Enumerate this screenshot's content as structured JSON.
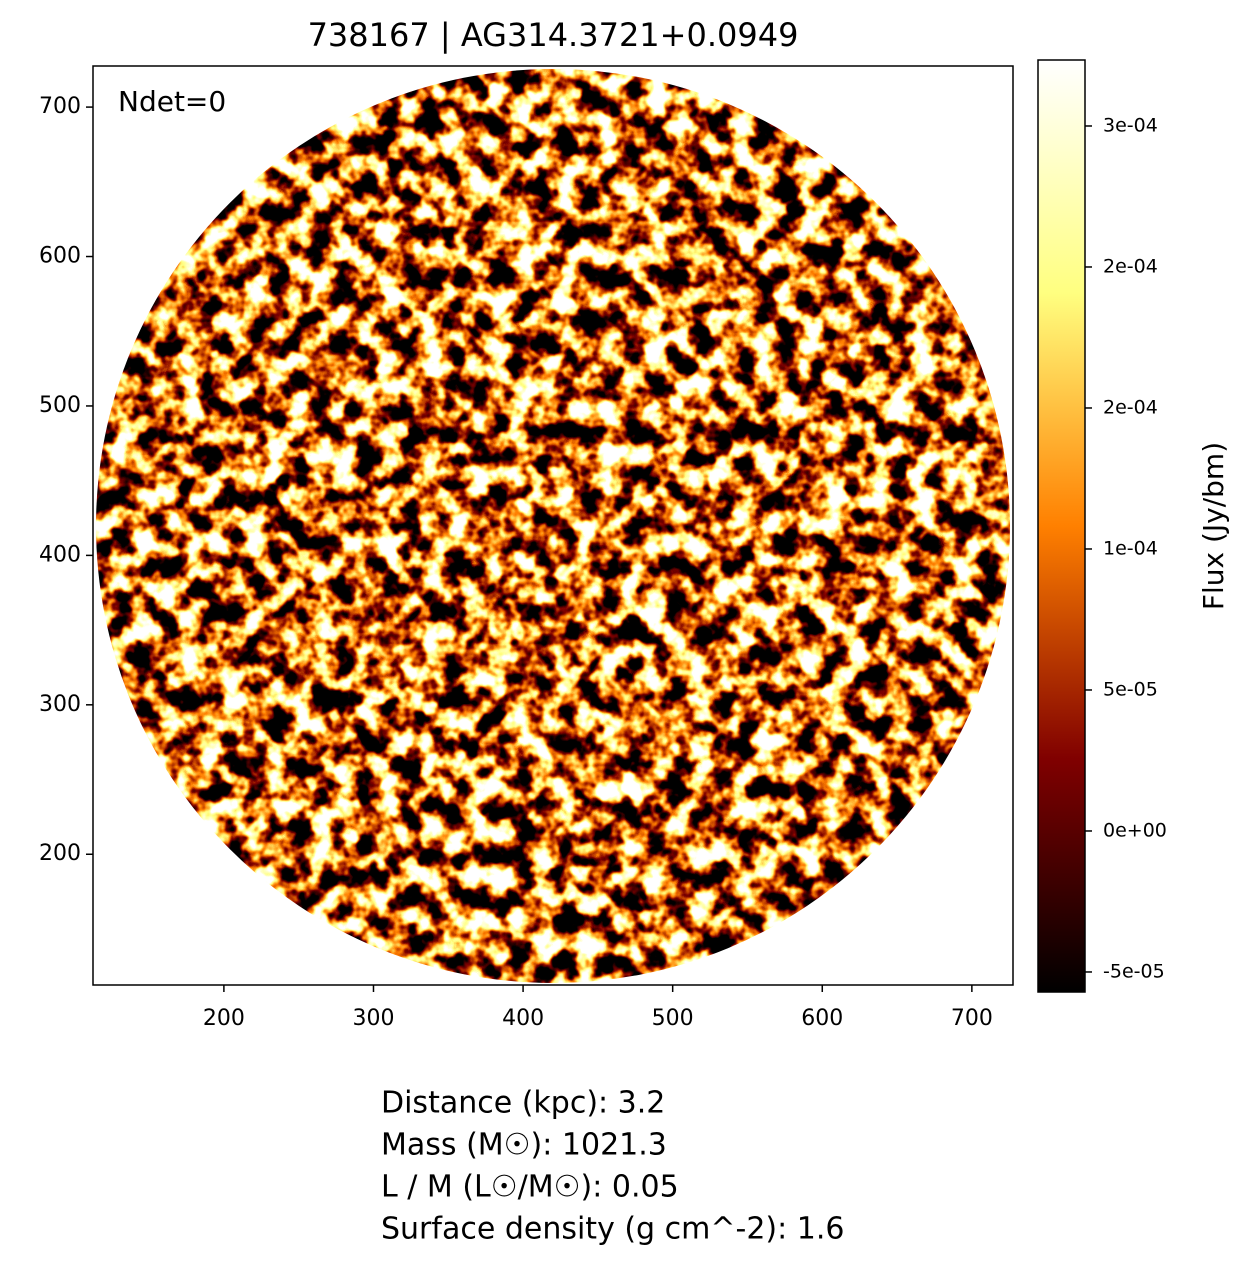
{
  "chart_data": {
    "type": "image",
    "title": "738167 | AG314.3721+0.0949",
    "annotation": "Ndet=0",
    "xlim": [
      112.5,
      727.5
    ],
    "ylim": [
      112.5,
      727.5
    ],
    "xticks": [
      200,
      300,
      400,
      500,
      600,
      700
    ],
    "yticks": [
      200,
      300,
      400,
      500,
      600,
      700
    ],
    "colormap": "afmhot",
    "colorbar_label": "Flux (Jy/bm)",
    "clim": [
      -5.71e-05,
      0.0002734
    ],
    "cticks": [
      {
        "value": -5e-05,
        "label": "-5e-05"
      },
      {
        "value": 0,
        "label": "0e+00"
      },
      {
        "value": 5e-05,
        "label": "5e-05"
      },
      {
        "value": 0.0001,
        "label": "1e-04"
      },
      {
        "value": 0.00015,
        "label": "2e-04"
      },
      {
        "value": 0.0002,
        "label": "2e-04"
      },
      {
        "value": 0.00025,
        "label": "3e-04"
      }
    ],
    "info": [
      "Distance (kpc): 3.2",
      "Mass (M☉): 1021.3",
      "L / M (L☉/M☉): 0.05",
      "Surface density (g cm^-2): 1.6"
    ]
  }
}
